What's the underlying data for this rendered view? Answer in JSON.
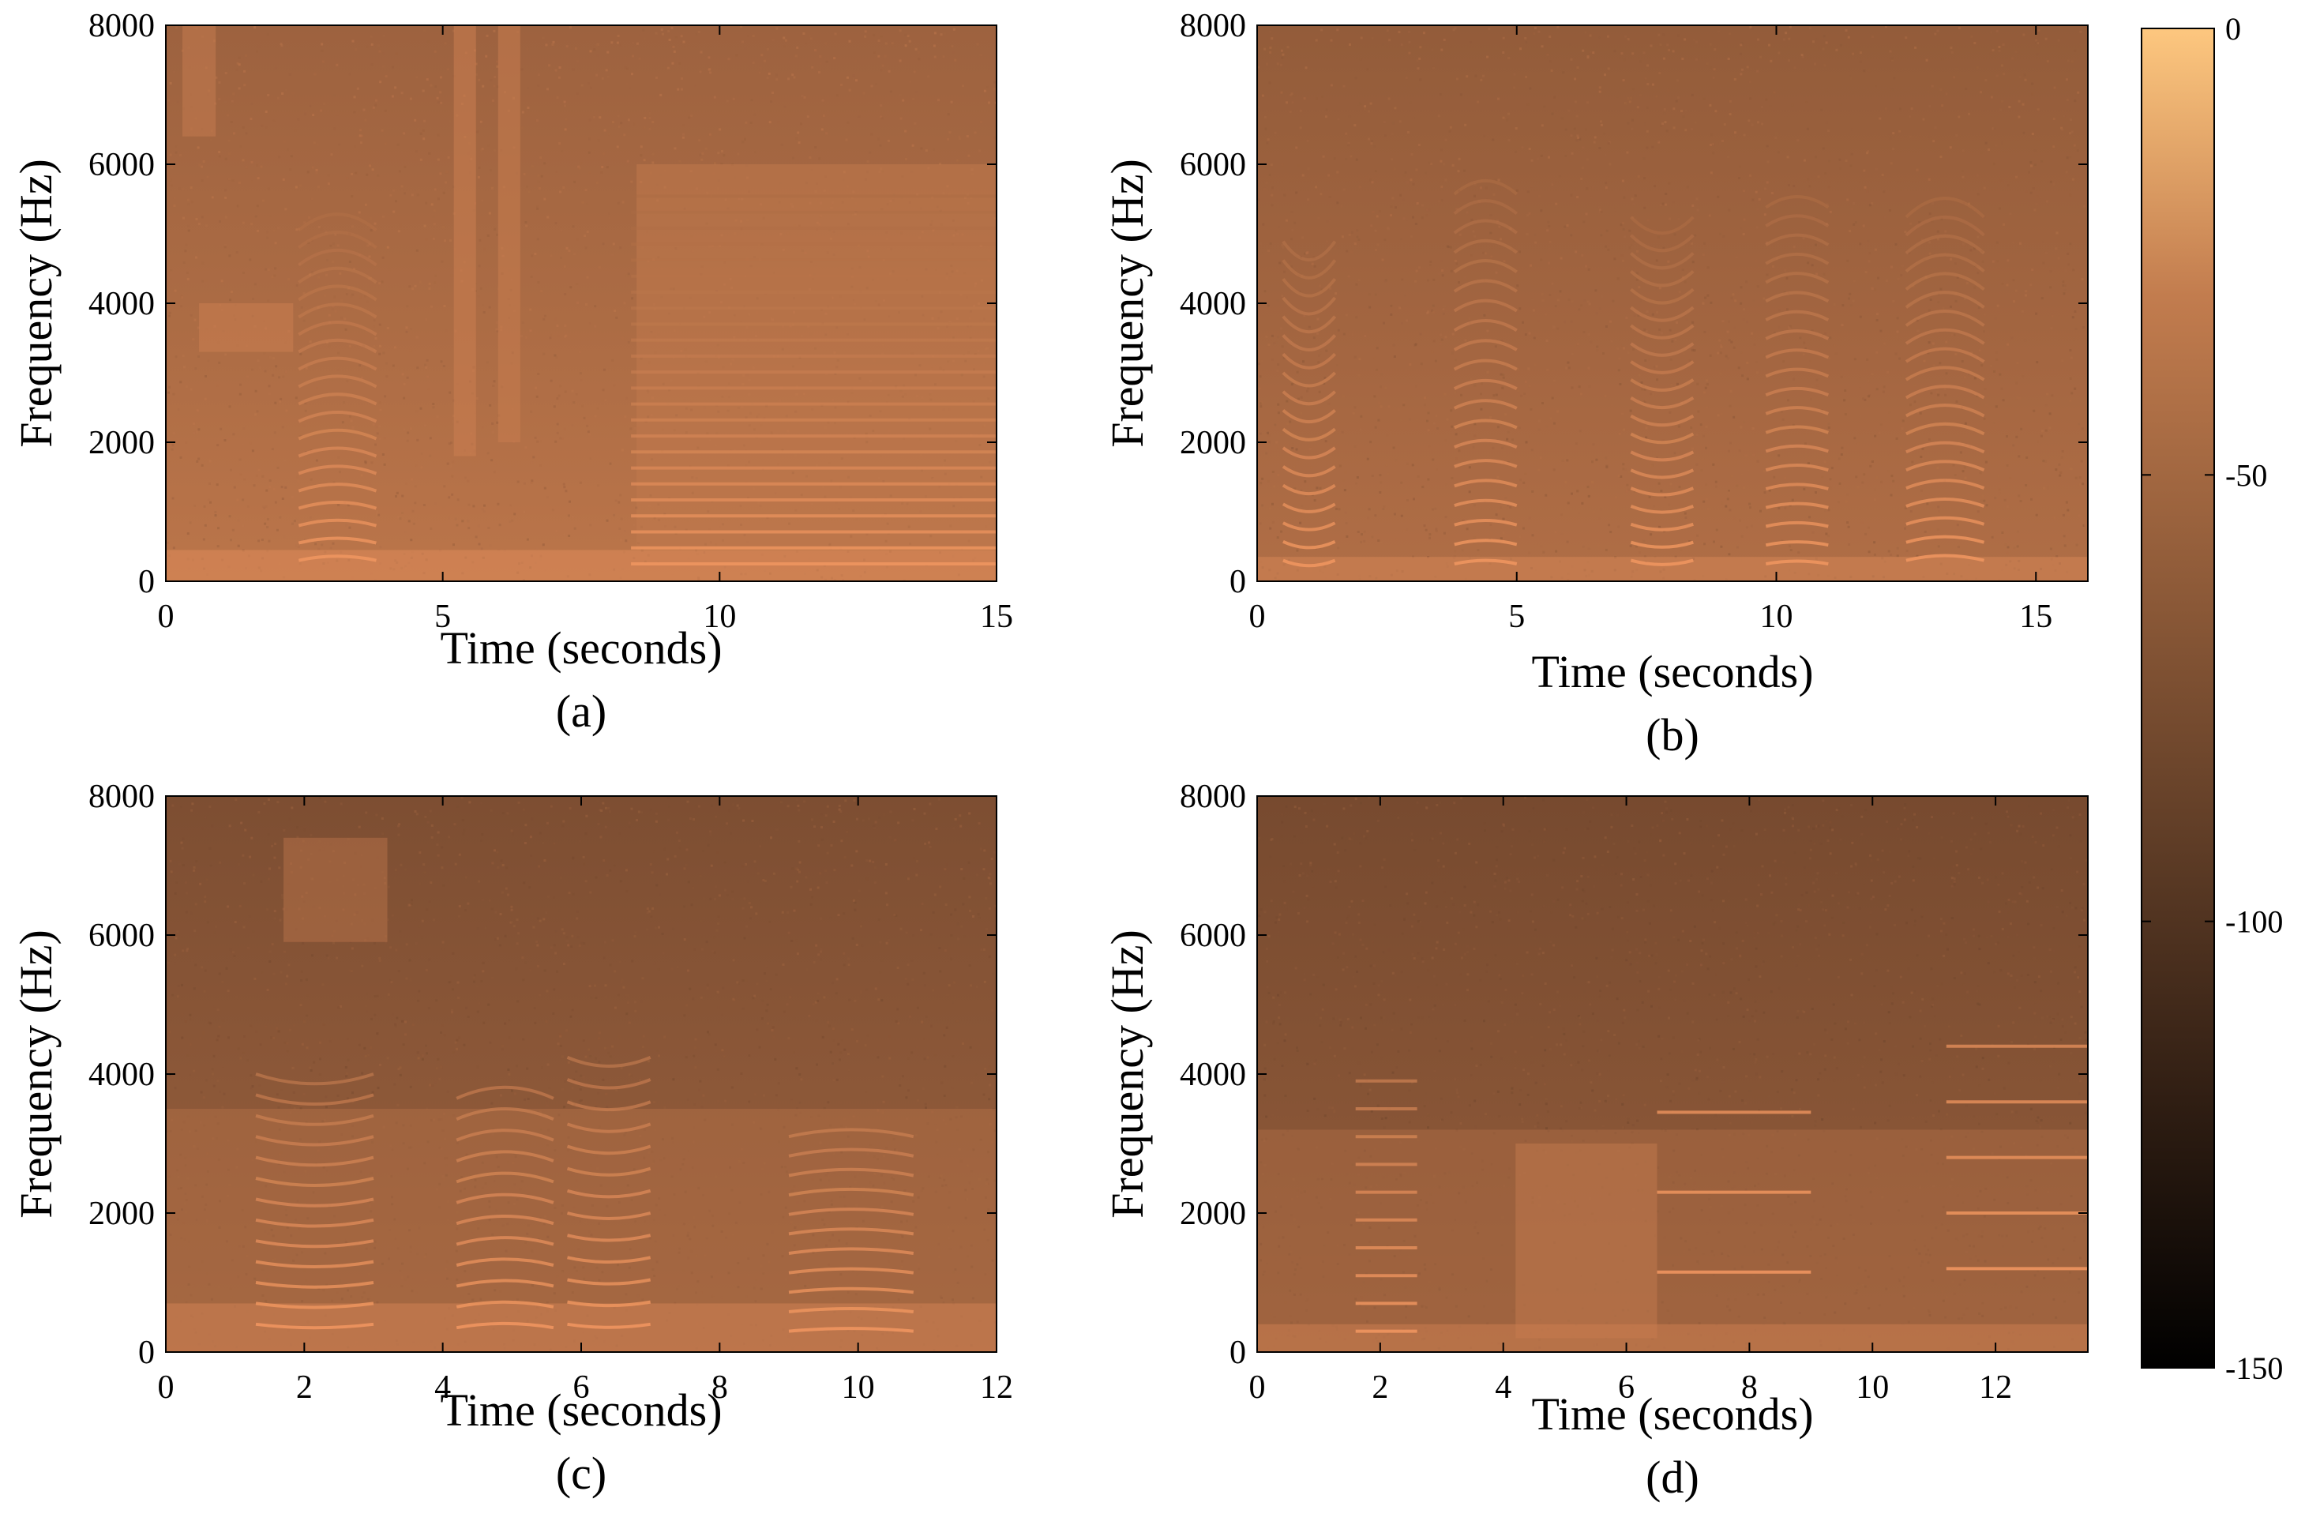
{
  "chart_data": [
    {
      "type": "heatmap",
      "caption": "(a)",
      "xlabel": "Time (seconds)",
      "ylabel": "Frequency (Hz)",
      "xlim": [
        0,
        15
      ],
      "ylim": [
        0,
        8000
      ],
      "xticks": [
        0,
        5,
        10,
        15
      ],
      "yticks": [
        0,
        2000,
        4000,
        6000,
        8000
      ],
      "background_level": -70,
      "harmonics": [
        {
          "t0": 2.4,
          "t1": 3.8,
          "f0": 300,
          "df": 250,
          "n": 20,
          "curve": 120
        },
        {
          "t0": 8.4,
          "t1": 15,
          "f0": 250,
          "df": 230,
          "n": 24,
          "curve": 0
        }
      ],
      "bands": [
        {
          "t0": 0,
          "t1": 15,
          "f0": 0,
          "f1": 450,
          "level": -45
        },
        {
          "t0": 0.6,
          "t1": 2.3,
          "f0": 3300,
          "f1": 4000,
          "level": -55
        },
        {
          "t0": 0.3,
          "t1": 0.9,
          "f0": 6400,
          "f1": 8000,
          "level": -58
        },
        {
          "t0": 5.2,
          "t1": 5.6,
          "f0": 1800,
          "f1": 8000,
          "level": -55
        },
        {
          "t0": 6.0,
          "t1": 6.4,
          "f0": 2000,
          "f1": 8000,
          "level": -57
        },
        {
          "t0": 8.5,
          "t1": 15,
          "f0": 450,
          "f1": 6000,
          "level": -60
        }
      ]
    },
    {
      "type": "heatmap",
      "caption": "(b)",
      "xlabel": "Time (seconds)",
      "ylabel": "Frequency (Hz)",
      "xlim": [
        0,
        16
      ],
      "ylim": [
        0,
        8000
      ],
      "xticks": [
        0,
        5,
        10,
        15
      ],
      "yticks": [
        0,
        2000,
        4000,
        6000,
        8000
      ],
      "background_level": -75,
      "harmonics": [
        {
          "t0": 0.5,
          "t1": 1.5,
          "f0": 300,
          "df": 270,
          "n": 18,
          "curve": -150
        },
        {
          "t0": 3.8,
          "t1": 5.0,
          "f0": 250,
          "df": 280,
          "n": 20,
          "curve": 100
        },
        {
          "t0": 7.2,
          "t1": 8.4,
          "f0": 300,
          "df": 260,
          "n": 20,
          "curve": -120
        },
        {
          "t0": 9.8,
          "t1": 11.0,
          "f0": 250,
          "df": 270,
          "n": 20,
          "curve": 80
        },
        {
          "t0": 12.5,
          "t1": 14.0,
          "f0": 300,
          "df": 260,
          "n": 20,
          "curve": 140
        }
      ],
      "bands": [
        {
          "t0": 0,
          "t1": 16,
          "f0": 0,
          "f1": 350,
          "level": -50
        }
      ]
    },
    {
      "type": "heatmap",
      "caption": "(c)",
      "xlabel": "Time (seconds)",
      "ylabel": "Frequency (Hz)",
      "xlim": [
        0,
        12
      ],
      "ylim": [
        0,
        8000
      ],
      "xticks": [
        0,
        2,
        4,
        6,
        8,
        10,
        12
      ],
      "yticks": [
        0,
        2000,
        4000,
        6000,
        8000
      ],
      "background_level": -85,
      "harmonics": [
        {
          "t0": 1.3,
          "t1": 3.0,
          "f0": 400,
          "df": 300,
          "n": 13,
          "curve": -100
        },
        {
          "t0": 4.2,
          "t1": 5.6,
          "f0": 350,
          "df": 300,
          "n": 12,
          "curve": 120
        },
        {
          "t0": 5.8,
          "t1": 7.0,
          "f0": 400,
          "df": 320,
          "n": 13,
          "curve": -90
        },
        {
          "t0": 9.0,
          "t1": 10.8,
          "f0": 300,
          "df": 280,
          "n": 11,
          "curve": 80
        }
      ],
      "bands": [
        {
          "t0": 0,
          "t1": 12,
          "f0": 0,
          "f1": 3500,
          "level": -68
        },
        {
          "t0": 0,
          "t1": 12,
          "f0": 0,
          "f1": 700,
          "level": -52
        },
        {
          "t0": 1.7,
          "t1": 3.2,
          "f0": 5900,
          "f1": 7400,
          "level": -66
        }
      ]
    },
    {
      "type": "heatmap",
      "caption": "(d)",
      "xlabel": "Time (seconds)",
      "ylabel": "Frequency (Hz)",
      "xlim": [
        0,
        13.5
      ],
      "ylim": [
        0,
        8000
      ],
      "xticks": [
        0,
        2,
        4,
        6,
        8,
        10,
        12
      ],
      "yticks": [
        0,
        2000,
        4000,
        6000,
        8000
      ],
      "background_level": -88,
      "harmonics": [
        {
          "t0": 1.6,
          "t1": 2.6,
          "f0": 300,
          "df": 400,
          "n": 10,
          "curve": 0
        },
        {
          "t0": 6.5,
          "t1": 9.0,
          "f0": 1150,
          "df": 1150,
          "n": 3,
          "curve": 0
        },
        {
          "t0": 11.2,
          "t1": 13.5,
          "f0": 1200,
          "df": 800,
          "n": 5,
          "curve": 0
        }
      ],
      "bands": [
        {
          "t0": 0,
          "t1": 13.5,
          "f0": 0,
          "f1": 3200,
          "level": -70
        },
        {
          "t0": 4.2,
          "t1": 6.5,
          "f0": 200,
          "f1": 3000,
          "level": -60
        },
        {
          "t0": 0,
          "t1": 13.5,
          "f0": 0,
          "f1": 400,
          "level": -55
        }
      ]
    }
  ],
  "colorbar": {
    "ticks": [
      0,
      -50,
      -100,
      -150
    ],
    "range": [
      -150,
      0
    ],
    "colormap": "copper"
  }
}
